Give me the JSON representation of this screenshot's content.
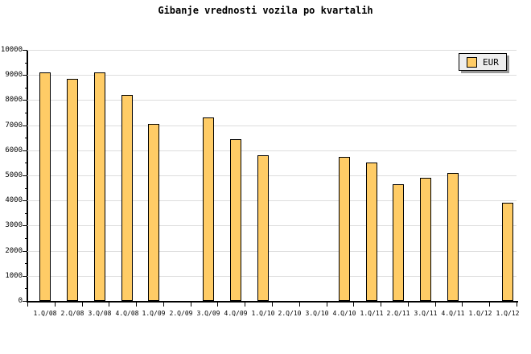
{
  "title": "Gibanje vrednosti vozila po kvartalih",
  "legend": {
    "label": "EUR",
    "position": "top-right"
  },
  "colors": {
    "bar_fill": "#FFCC66",
    "bar_border": "#000000",
    "grid": "#DDDDDD",
    "axis": "#000000",
    "legend_bg": "#EEEEEE",
    "legend_shadow": "#999999",
    "background": "#FFFFFF",
    "text": "#000000"
  },
  "chart_data": {
    "type": "bar",
    "title": "Gibanje vrednosti vozila po kvartalih",
    "categories": [
      "1.Q/08",
      "2.Q/08",
      "3.Q/08",
      "4.Q/08",
      "1.Q/09",
      "2.Q/09",
      "3.Q/09",
      "4.Q/09",
      "1.Q/10",
      "2.Q/10",
      "3.Q/10",
      "4.Q/10",
      "1.Q/11",
      "2.Q/11",
      "3.Q/11",
      "4.Q/11",
      "1.Q/12",
      "1.Q/12"
    ],
    "series": [
      {
        "name": "EUR",
        "values": [
          9100,
          8850,
          9100,
          8200,
          7050,
          null,
          7300,
          6450,
          5800,
          null,
          null,
          5750,
          5500,
          4650,
          4900,
          5100,
          null,
          3900
        ]
      }
    ],
    "xlabel": "",
    "ylabel": "",
    "ylim": [
      0,
      10000
    ],
    "y_major_step": 1000,
    "y_minor_step": 500,
    "y_tick_labels": [
      "0",
      "1000",
      "2000",
      "3000",
      "4000",
      "5000",
      "6000",
      "7000",
      "8000",
      "9000",
      "10000"
    ],
    "grid": "horizontal-major",
    "legend_position": "top-right",
    "missing_value_note": "no bars drawn for 2.Q/09, 2.Q/10, 3.Q/10 and first 1.Q/12"
  }
}
